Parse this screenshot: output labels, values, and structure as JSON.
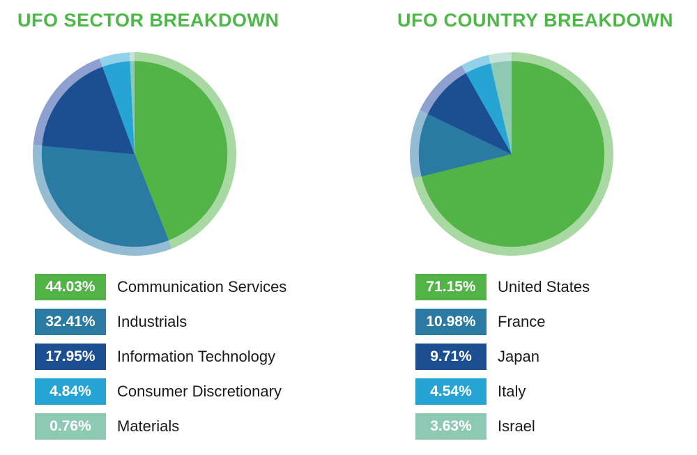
{
  "chart_data": [
    {
      "type": "pie",
      "title": "UFO SECTOR BREAKDOWN",
      "slices": [
        {
          "label": "Communication Services",
          "value": 44.03,
          "display": "44.03%",
          "color": "#52b347",
          "ring_color": "#a9d9a3"
        },
        {
          "label": "Industrials",
          "value": 32.41,
          "display": "32.41%",
          "color": "#2a7aa3",
          "ring_color": "#94bcd2"
        },
        {
          "label": "Information Technology",
          "value": 17.95,
          "display": "17.95%",
          "color": "#1c4f91",
          "ring_color": "#8da0cf"
        },
        {
          "label": "Consumer Discretionary",
          "value": 4.84,
          "display": "4.84%",
          "color": "#26a4d4",
          "ring_color": "#92d1ea"
        },
        {
          "label": "Materials",
          "value": 0.76,
          "display": "0.76%",
          "color": "#8ec9b4",
          "ring_color": "#c6e4d9"
        }
      ]
    },
    {
      "type": "pie",
      "title": "UFO COUNTRY BREAKDOWN",
      "slices": [
        {
          "label": "United States",
          "value": 71.15,
          "display": "71.15%",
          "color": "#52b347",
          "ring_color": "#a9d9a3"
        },
        {
          "label": "France",
          "value": 10.98,
          "display": "10.98%",
          "color": "#2a7aa3",
          "ring_color": "#94bcd2"
        },
        {
          "label": "Japan",
          "value": 9.71,
          "display": "9.71%",
          "color": "#1c4f91",
          "ring_color": "#8da0cf"
        },
        {
          "label": "Italy",
          "value": 4.54,
          "display": "4.54%",
          "color": "#26a4d4",
          "ring_color": "#92d1ea"
        },
        {
          "label": "Israel",
          "value": 3.63,
          "display": "3.63%",
          "color": "#8ec9b4",
          "ring_color": "#c6e4d9"
        }
      ]
    }
  ]
}
